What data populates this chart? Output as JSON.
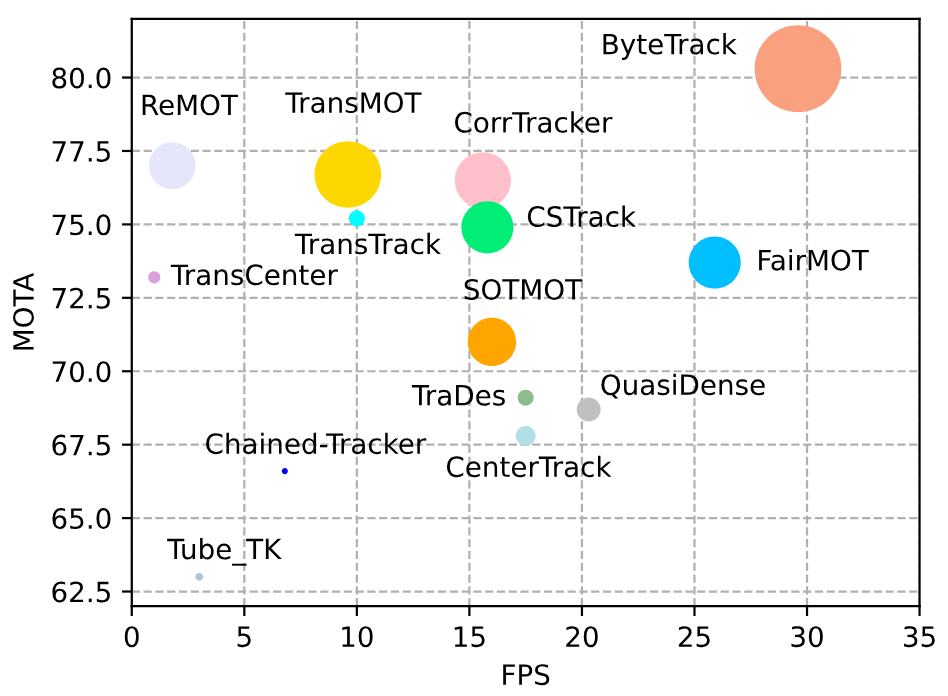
{
  "chart_data": {
    "type": "bubble",
    "xlabel": "FPS",
    "ylabel": "MOTA",
    "xlim": [
      0,
      35
    ],
    "xticks": [
      0,
      5,
      10,
      15,
      20,
      25,
      30,
      35
    ],
    "ylim": [
      62,
      82
    ],
    "yticks": [
      {
        "value": 62.5,
        "label": "62.5"
      },
      {
        "value": 65,
        "label": "65.0"
      },
      {
        "value": 67.5,
        "label": "67.5"
      },
      {
        "value": 70,
        "label": "70.0"
      },
      {
        "value": 72.5,
        "label": "72.5"
      },
      {
        "value": 75,
        "label": "75.0"
      },
      {
        "value": 77.5,
        "label": "77.5"
      },
      {
        "value": 80,
        "label": "80.0"
      }
    ],
    "grid": true,
    "line_style": "dashed",
    "series": [
      {
        "name": "ByteTrack",
        "color": "#f9a07f",
        "x": [
          29.6
        ],
        "values": [
          80.3
        ],
        "sizes": [
          1
        ]
      },
      {
        "name": "ReMOT",
        "color": "#e6e6fa",
        "x": [
          1.8
        ],
        "values": [
          77.0
        ],
        "sizes": [
          0.29
        ]
      },
      {
        "name": "TransMOT",
        "color": "#ffd700",
        "x": [
          9.6
        ],
        "values": [
          76.7
        ],
        "sizes": [
          0.59
        ]
      },
      {
        "name": "TransTrack",
        "color": "#00ffff",
        "x": [
          10.0
        ],
        "values": [
          75.2
        ],
        "sizes": [
          0.034
        ]
      },
      {
        "name": "CorrTracker",
        "color": "#ffc0cb",
        "x": [
          15.6
        ],
        "values": [
          76.5
        ],
        "sizes": [
          0.42
        ]
      },
      {
        "name": "CSTrack",
        "color": "#00ee76",
        "x": [
          15.8
        ],
        "values": [
          74.9
        ],
        "sizes": [
          0.36
        ]
      },
      {
        "name": "TransCenter",
        "color": "#dda0dd",
        "x": [
          1.0
        ],
        "values": [
          73.2
        ],
        "sizes": [
          0.02
        ]
      },
      {
        "name": "FairMOT",
        "color": "#00bfff",
        "x": [
          25.9
        ],
        "values": [
          73.7
        ],
        "sizes": [
          0.36
        ]
      },
      {
        "name": "SOTMOT",
        "color": "#ffa500",
        "x": [
          16.0
        ],
        "values": [
          71.0
        ],
        "sizes": [
          0.31
        ]
      },
      {
        "name": "TraDes",
        "color": "#8fbc8f",
        "x": [
          17.5
        ],
        "values": [
          69.1
        ],
        "sizes": [
          0.034
        ]
      },
      {
        "name": "QuasiDense",
        "color": "#c0c0c0",
        "x": [
          20.3
        ],
        "values": [
          68.7
        ],
        "sizes": [
          0.076
        ]
      },
      {
        "name": "CenterTrack",
        "color": "#b0e0e6",
        "x": [
          17.5
        ],
        "values": [
          67.8
        ],
        "sizes": [
          0.053
        ]
      },
      {
        "name": "Chained-Tracker",
        "color": "#0000ff",
        "x": [
          6.8
        ],
        "values": [
          66.6
        ],
        "sizes": [
          0.005
        ]
      },
      {
        "name": "Tube_TK",
        "color": "#b0c4de",
        "x": [
          3.0
        ],
        "values": [
          63.0
        ],
        "sizes": [
          0.008
        ]
      }
    ]
  }
}
